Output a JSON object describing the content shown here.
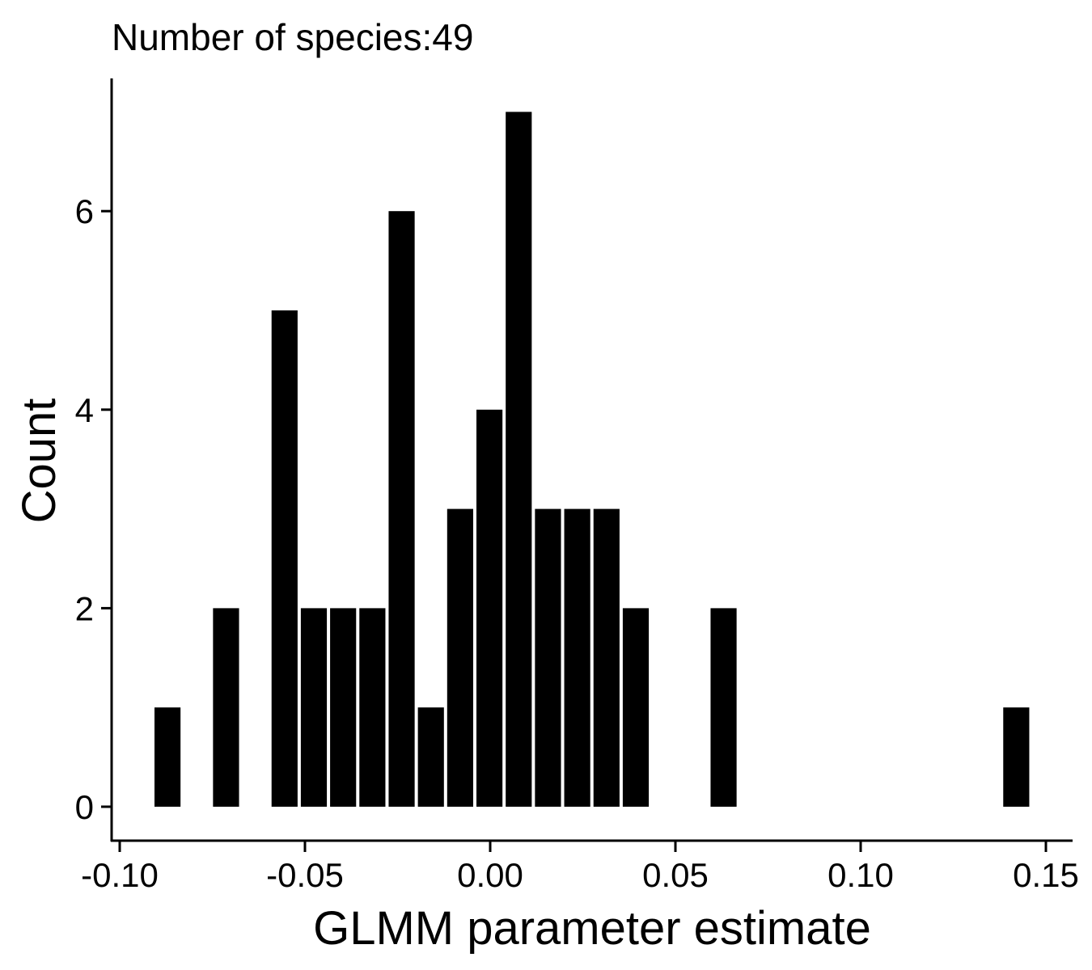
{
  "chart_data": {
    "type": "bar",
    "title": "Number of species:49",
    "xlabel": "GLMM parameter estimate",
    "ylabel": "Count",
    "xlim": [
      -0.1,
      0.15
    ],
    "ylim": [
      0,
      7
    ],
    "x_ticks": [
      "-0.10",
      "-0.05",
      "0.00",
      "0.05",
      "0.10",
      "0.15"
    ],
    "x_tick_values": [
      -0.1,
      -0.05,
      0.0,
      0.05,
      0.1,
      0.15
    ],
    "y_ticks": [
      "0",
      "2",
      "4",
      "6"
    ],
    "y_tick_values": [
      0,
      2,
      4,
      6
    ],
    "bin_width": 0.0079,
    "bins": [
      {
        "x": -0.0871,
        "count": 1
      },
      {
        "x": -0.0713,
        "count": 2
      },
      {
        "x": -0.0555,
        "count": 5
      },
      {
        "x": -0.0476,
        "count": 2
      },
      {
        "x": -0.0397,
        "count": 2
      },
      {
        "x": -0.0318,
        "count": 2
      },
      {
        "x": -0.0239,
        "count": 6
      },
      {
        "x": -0.016,
        "count": 1
      },
      {
        "x": -0.0081,
        "count": 3
      },
      {
        "x": -0.0002,
        "count": 4
      },
      {
        "x": 0.0077,
        "count": 7
      },
      {
        "x": 0.0156,
        "count": 3
      },
      {
        "x": 0.0235,
        "count": 3
      },
      {
        "x": 0.0314,
        "count": 3
      },
      {
        "x": 0.0393,
        "count": 2
      },
      {
        "x": 0.063,
        "count": 2
      },
      {
        "x": 0.142,
        "count": 1
      }
    ],
    "bar_color": "#000000",
    "bar_outline": "#ffffff",
    "grid": false,
    "legend": "none"
  }
}
